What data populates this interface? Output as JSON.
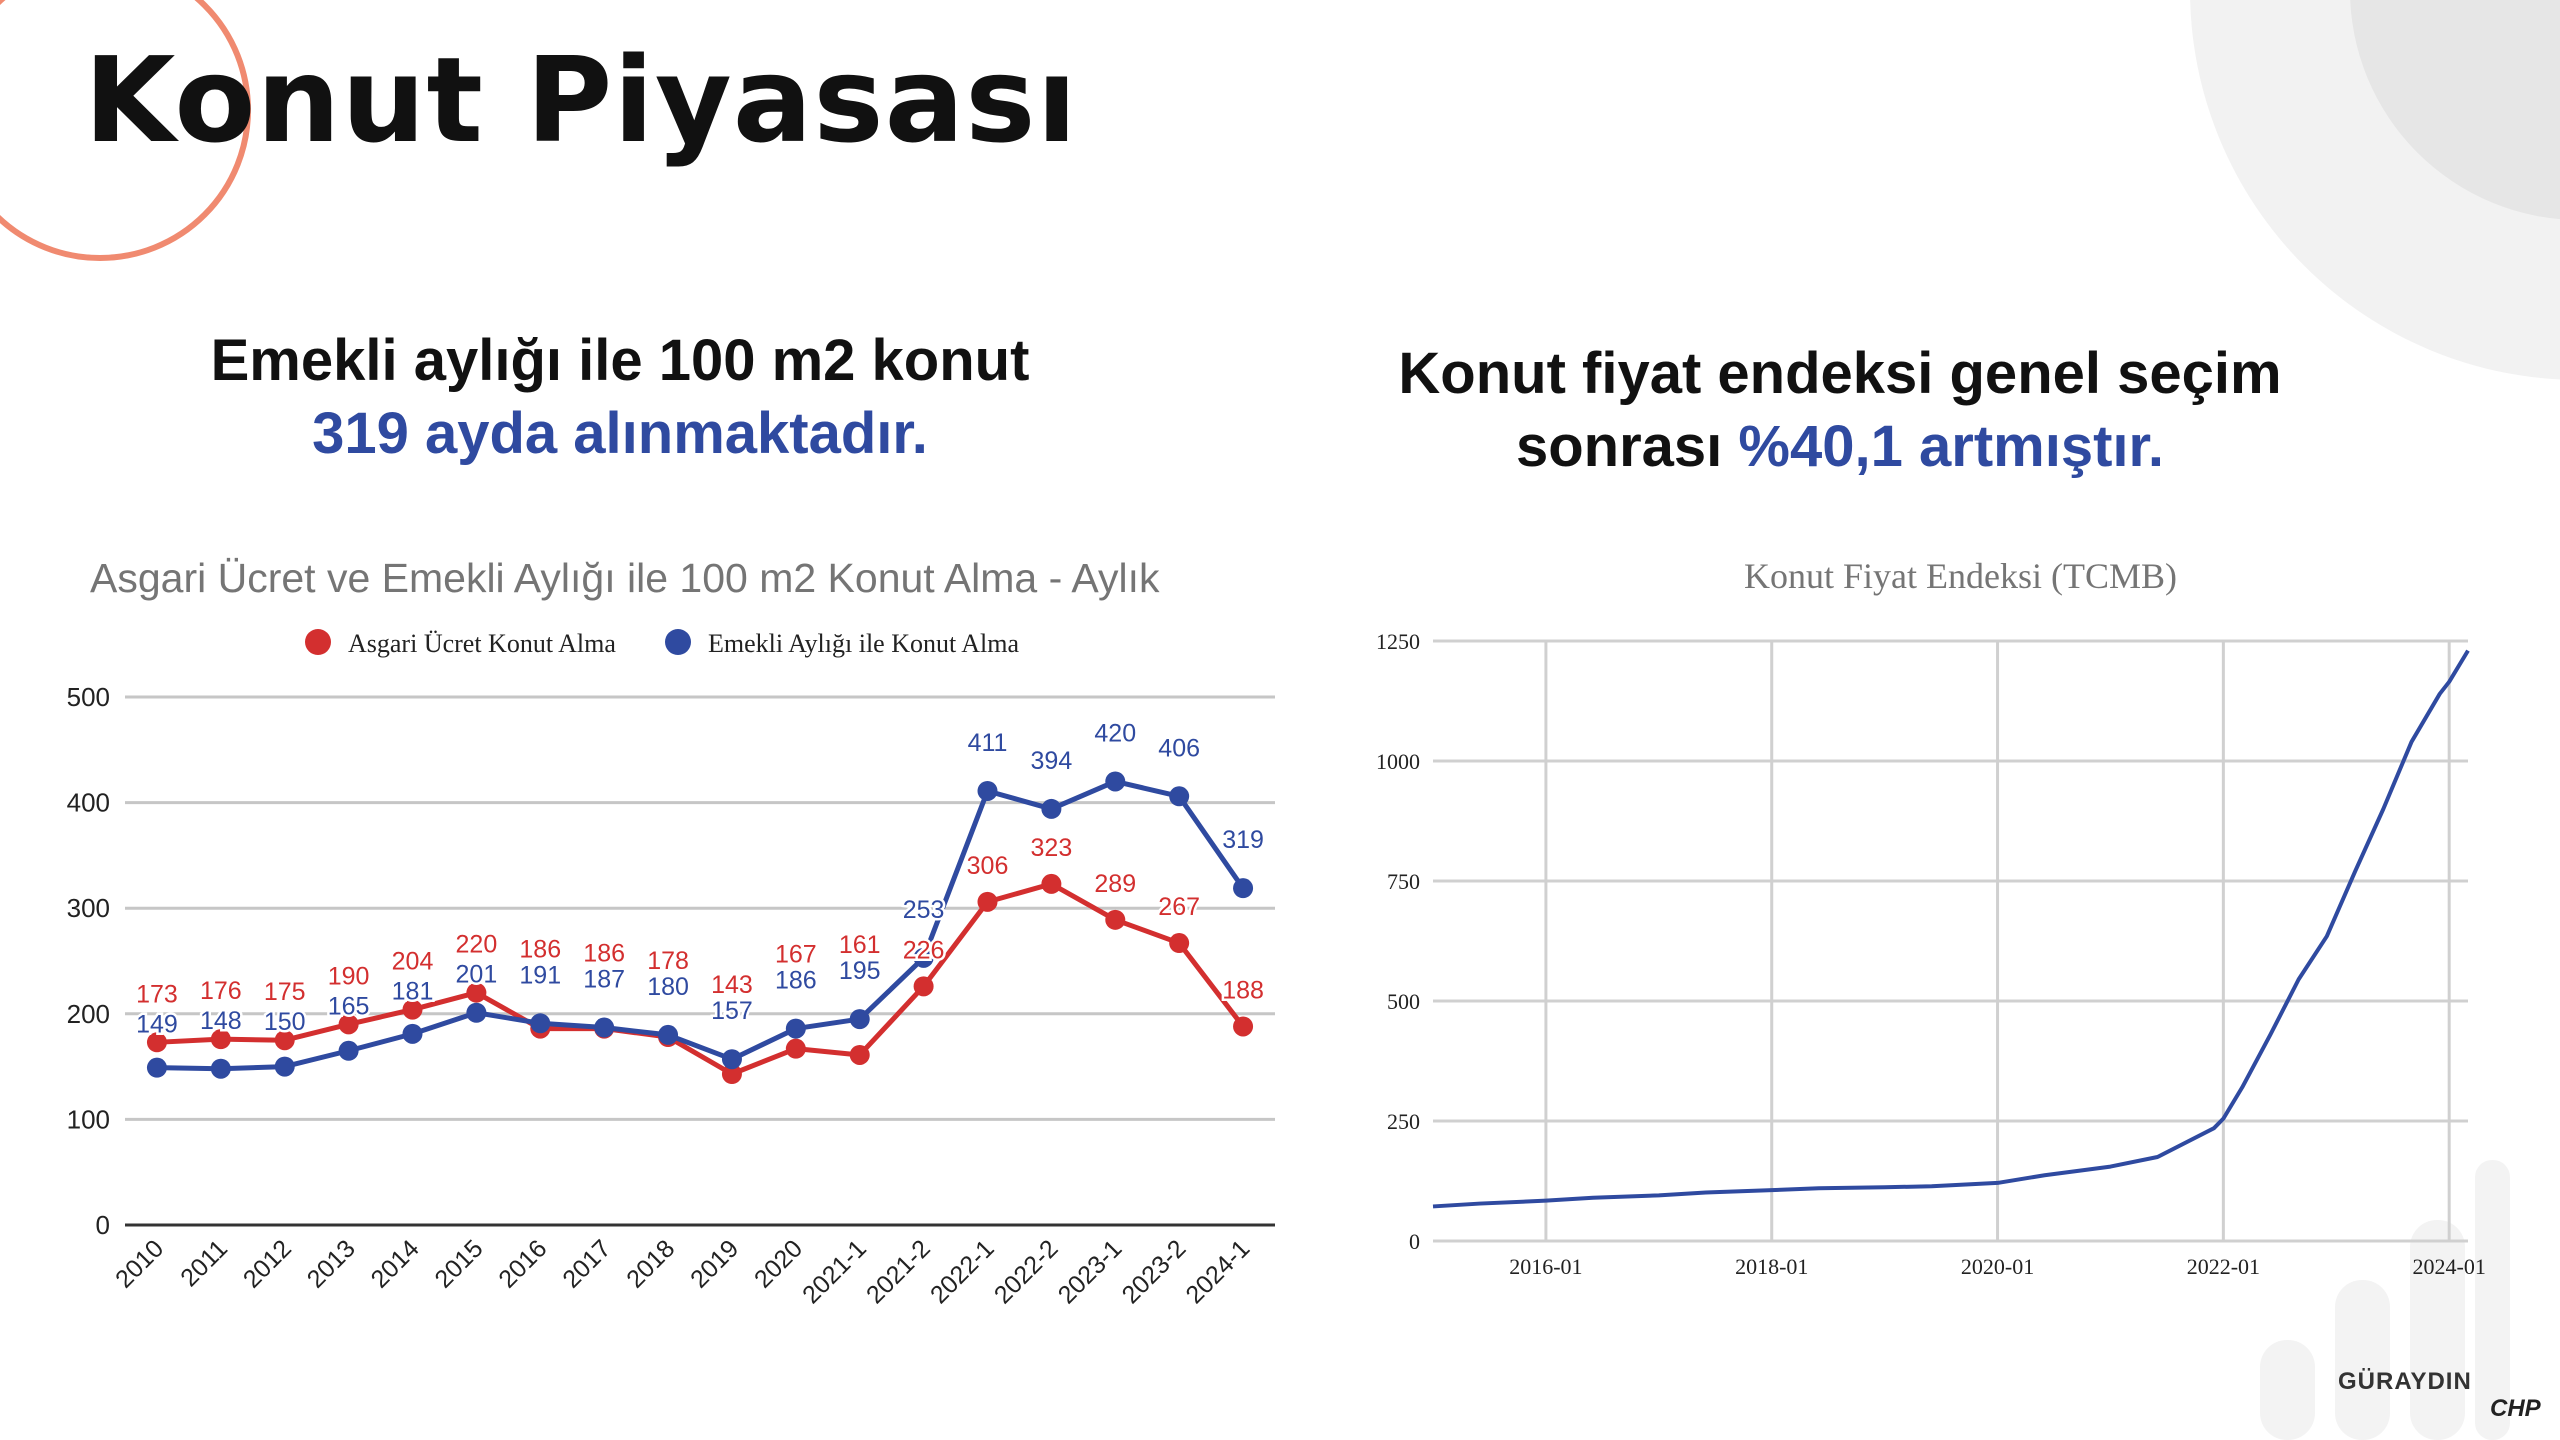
{
  "slide": {
    "title": "Konut Piyasası",
    "left_headline": {
      "line1": "Emekli aylığı ile 100 m2 konut",
      "line2": "319 ayda alınmaktadır."
    },
    "right_headline": {
      "line1": "Konut fiyat endeksi genel seçim",
      "line2_prefix": "sonrası ",
      "line2_highlight": "%40,1 artmıştır."
    },
    "signature": "GÜRAYDIN",
    "party_logo": "CHP",
    "colors": {
      "accent_blue": "#2f4aa0",
      "deco_orange": "#f08a70",
      "deco_gray": "#eeeeee"
    }
  },
  "chart_data": [
    {
      "type": "line",
      "title": "Asgari Ücret ve Emekli Aylığı ile 100 m2 Konut Alma - Aylık",
      "categories": [
        "2010",
        "2011",
        "2012",
        "2013",
        "2014",
        "2015",
        "2016",
        "2017",
        "2018",
        "2019",
        "2020",
        "2021-1",
        "2021-2",
        "2022-1",
        "2022-2",
        "2023-1",
        "2023-2",
        "2024-1"
      ],
      "series": [
        {
          "name": "Asgari Ücret Konut Alma",
          "color": "#d32f2f",
          "values": [
            173,
            176,
            175,
            190,
            204,
            220,
            186,
            186,
            178,
            143,
            167,
            161,
            226,
            306,
            323,
            289,
            267,
            188
          ]
        },
        {
          "name": "Emekli Aylığı ile Konut Alma",
          "color": "#2f4aa0",
          "values": [
            149,
            148,
            150,
            165,
            181,
            201,
            191,
            187,
            180,
            157,
            186,
            195,
            253,
            411,
            394,
            420,
            406,
            319
          ]
        }
      ],
      "ylim": [
        0,
        500
      ],
      "yticks": [
        0,
        100,
        200,
        300,
        400,
        500
      ],
      "legend": "top",
      "grid": true
    },
    {
      "type": "line",
      "title": "Konut Fiyat Endeksi (TCMB)",
      "xlim": [
        "2015-01",
        "2024-03"
      ],
      "ylim": [
        0,
        1250
      ],
      "yticks": [
        0,
        250,
        500,
        750,
        1000,
        1250
      ],
      "xticks": [
        "2016-01",
        "2018-01",
        "2020-01",
        "2022-01",
        "2024-01"
      ],
      "grid": true,
      "series": [
        {
          "name": "",
          "color": "#2f4aa0",
          "points": [
            [
              "2015-01",
              72
            ],
            [
              "2015-06",
              78
            ],
            [
              "2016-01",
              84
            ],
            [
              "2016-06",
              90
            ],
            [
              "2017-01",
              95
            ],
            [
              "2017-06",
              101
            ],
            [
              "2018-01",
              106
            ],
            [
              "2018-06",
              110
            ],
            [
              "2019-01",
              112
            ],
            [
              "2019-06",
              114
            ],
            [
              "2020-01",
              121
            ],
            [
              "2020-06",
              137
            ],
            [
              "2021-01",
              155
            ],
            [
              "2021-06",
              175
            ],
            [
              "2021-12",
              235
            ],
            [
              "2022-01",
              255
            ],
            [
              "2022-03",
              320
            ],
            [
              "2022-06",
              430
            ],
            [
              "2022-09",
              545
            ],
            [
              "2022-12",
              635
            ],
            [
              "2023-03",
              770
            ],
            [
              "2023-06",
              900
            ],
            [
              "2023-09",
              1040
            ],
            [
              "2023-12",
              1140
            ],
            [
              "2024-01",
              1165
            ],
            [
              "2024-03",
              1230
            ]
          ]
        }
      ]
    }
  ]
}
